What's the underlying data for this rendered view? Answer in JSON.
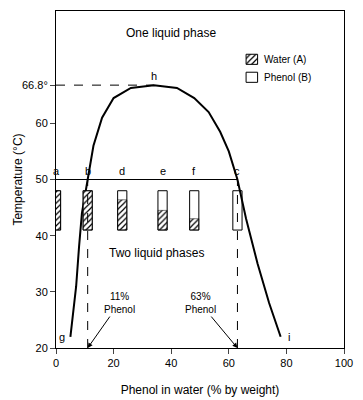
{
  "chart_data": {
    "type": "line",
    "x_label": "Phenol in water (% by weight)",
    "y_label": "Temperature (°C)",
    "xlim": [
      0,
      100
    ],
    "ylim": [
      20,
      80
    ],
    "xticks": [
      0,
      20,
      40,
      60,
      80,
      100
    ],
    "yticks": [
      20,
      30,
      40,
      50,
      60,
      {
        "value": 66.8,
        "label": "66.8°"
      }
    ],
    "color": "#000000",
    "x": [
      5,
      6,
      7,
      8,
      9,
      11,
      13,
      16,
      20,
      26,
      34,
      42,
      48,
      53,
      57,
      60,
      63,
      66,
      70,
      74,
      78
    ],
    "values": [
      22,
      26,
      31,
      38,
      44,
      50,
      56,
      61,
      64.5,
      66.3,
      66.8,
      66.3,
      64.5,
      62,
      58.5,
      55,
      50,
      43,
      35,
      28,
      22
    ],
    "tie_line": {
      "y": 50,
      "x": [
        0,
        63
      ]
    },
    "points": [
      {
        "label": "a",
        "x": 0,
        "y": 50
      },
      {
        "label": "b",
        "x": 11,
        "y": 50
      },
      {
        "label": "d",
        "x": 23,
        "y": 50
      },
      {
        "label": "e",
        "x": 37,
        "y": 50
      },
      {
        "label": "f",
        "x": 48,
        "y": 50
      },
      {
        "label": "c",
        "x": 63,
        "y": 50
      },
      {
        "label": "h",
        "x": 34,
        "y": 66.8
      },
      {
        "label": "g",
        "x": 5,
        "y": 22
      },
      {
        "label": "i",
        "x": 78,
        "y": 22
      }
    ],
    "annotations": [
      {
        "text": "One liquid phase",
        "x": 40,
        "y": 76
      },
      {
        "text": "Two liquid phases",
        "x": 35,
        "y": 37
      },
      {
        "text": "11%\nPhenol",
        "x": 22,
        "y": 28,
        "target_x": 11
      },
      {
        "text": "63%\nPhenol",
        "x": 50,
        "y": 28,
        "target_x": 63
      }
    ],
    "legend_items": [
      {
        "name": "Water (A)",
        "marker": "hatched"
      },
      {
        "name": "Phenol (B)",
        "marker": "none"
      }
    ]
  }
}
